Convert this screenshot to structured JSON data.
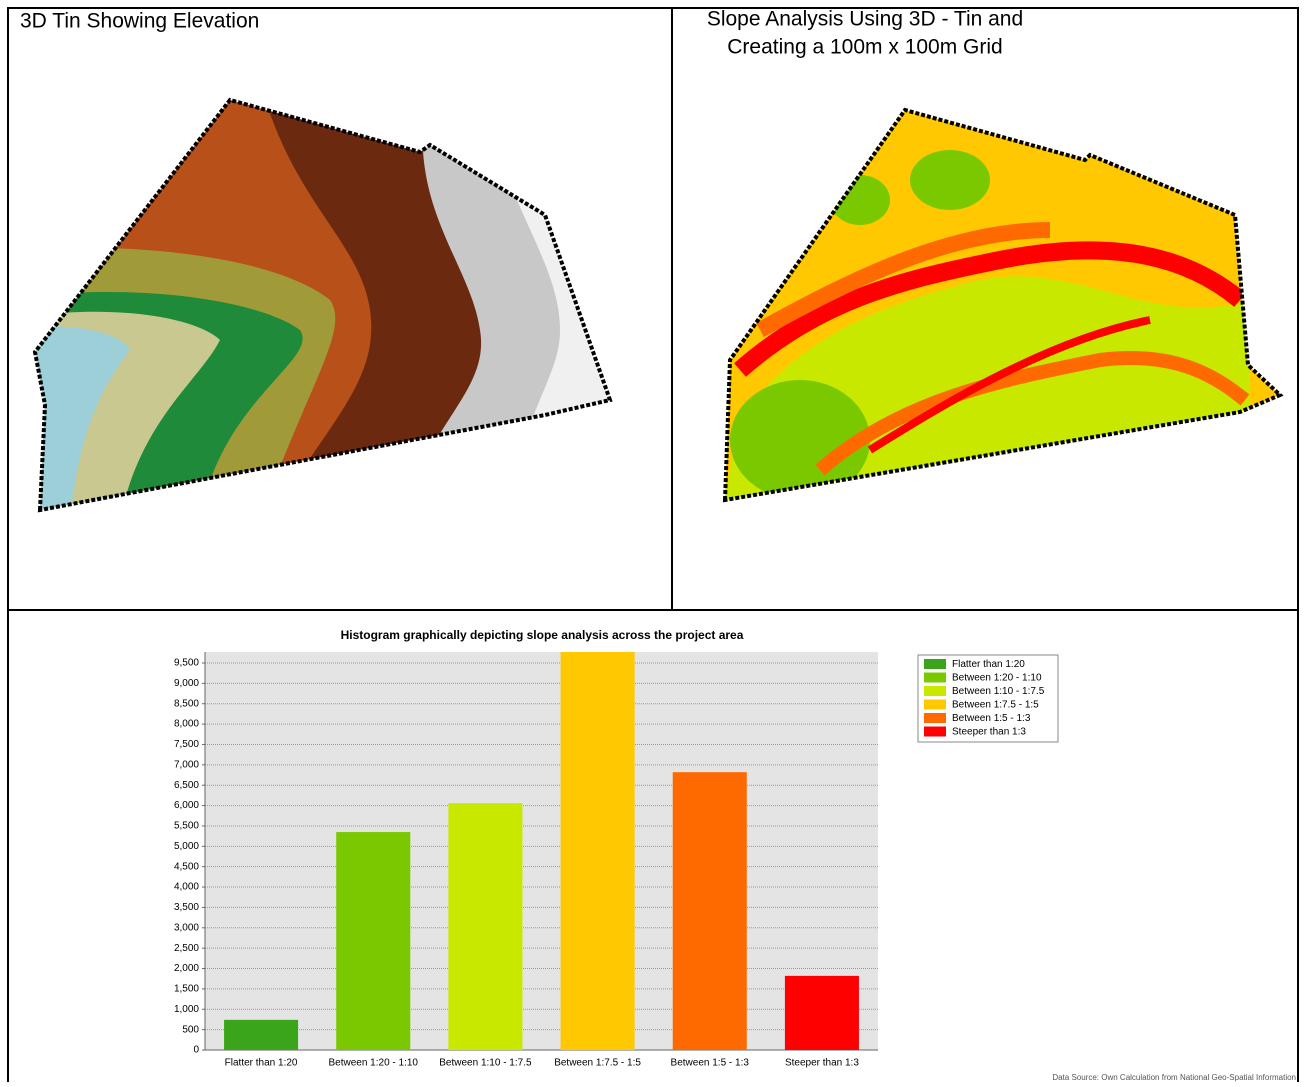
{
  "panels": [
    {
      "title": [
        "3D Tin Showing Elevation"
      ]
    },
    {
      "title": [
        "Slope Analysis Using 3D - Tin and",
        "Creating a 100m x 100m Grid"
      ]
    }
  ],
  "chart_data": {
    "type": "bar",
    "title": "Histogram graphically depicting slope analysis across the project area",
    "categories": [
      "Flatter than 1:20",
      "Between 1:20 - 1:10",
      "Between 1:10 - 1:7.5",
      "Between 1:7.5 - 1:5",
      "Between 1:5 - 1:3",
      "Steeper than 1:3"
    ],
    "values": [
      740,
      5350,
      6060,
      9770,
      6820,
      1820
    ],
    "colors": [
      "#3aa51a",
      "#79c800",
      "#c8e800",
      "#ffc800",
      "#ff6a00",
      "#ff0000"
    ],
    "ylim": [
      0,
      9770
    ],
    "yticks": [
      0,
      500,
      {
        "value": 1000,
        "label": "1,000"
      },
      {
        "value": 1500,
        "label": "1,500"
      },
      {
        "value": 2000,
        "label": "2,000"
      },
      {
        "value": 2500,
        "label": "2,500"
      },
      {
        "value": 3000,
        "label": "3,000"
      },
      {
        "value": 3500,
        "label": "3,500"
      },
      {
        "value": 4000,
        "label": "4,000"
      },
      {
        "value": 4500,
        "label": "4,500"
      },
      {
        "value": 5000,
        "label": "5,000"
      },
      {
        "value": 5500,
        "label": "5,500"
      },
      {
        "value": 6000,
        "label": "6,000"
      },
      {
        "value": 6500,
        "label": "6,500"
      },
      {
        "value": 7000,
        "label": "7,000"
      },
      {
        "value": 7500,
        "label": "7,500"
      },
      {
        "value": 8000,
        "label": "8,000"
      },
      {
        "value": 8500,
        "label": "8,500"
      },
      {
        "value": 9000,
        "label": "9,000"
      },
      {
        "value": 9500,
        "label": "9,500"
      }
    ],
    "grid": true,
    "legend": "right",
    "source": "Data Source: Own Calculation from National Geo-Spatial Information"
  }
}
